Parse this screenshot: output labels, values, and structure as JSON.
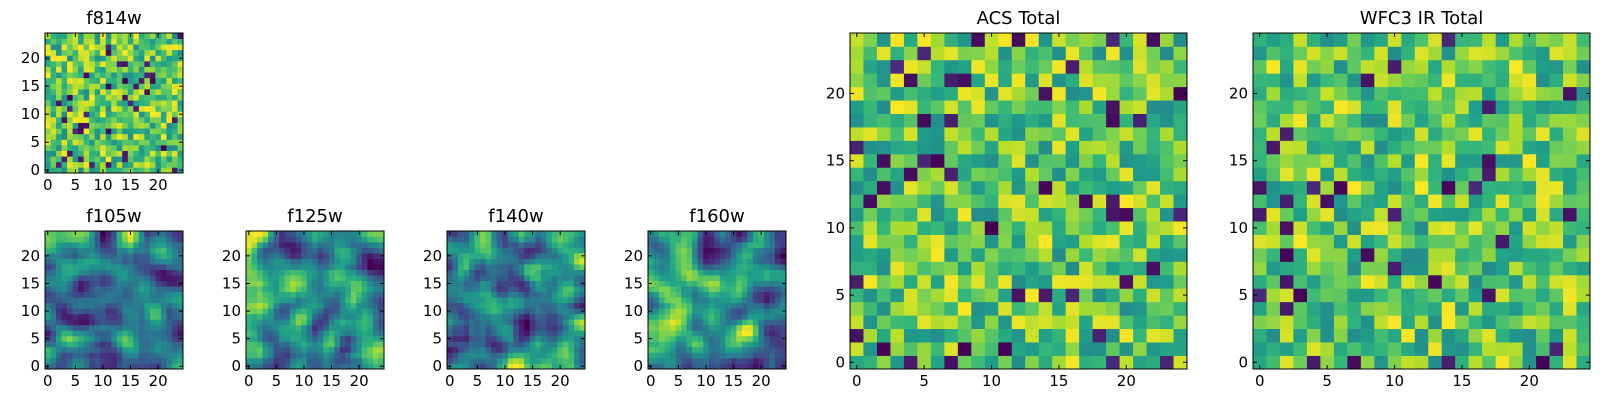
{
  "figure": {
    "colormap": "viridis",
    "colors": [
      "#440154",
      "#31688e",
      "#21918c",
      "#35b779",
      "#90d743",
      "#fde725"
    ]
  },
  "chart_data": [
    {
      "id": "f814w",
      "type": "heatmap",
      "title": "f814w",
      "grid": [
        25,
        25
      ],
      "xlim": [
        0,
        24
      ],
      "ylim": [
        0,
        24
      ],
      "xticks": [
        0,
        5,
        10,
        15,
        20
      ],
      "yticks": [
        0,
        5,
        10,
        15,
        20
      ],
      "texture": "noise",
      "seed": 11
    },
    {
      "id": "f105w",
      "type": "heatmap",
      "title": "f105w",
      "grid": [
        25,
        25
      ],
      "xlim": [
        0,
        24
      ],
      "ylim": [
        0,
        24
      ],
      "xticks": [
        0,
        5,
        10,
        15,
        20
      ],
      "yticks": [
        0,
        5,
        10,
        15,
        20
      ],
      "texture": "smooth",
      "seed": 23
    },
    {
      "id": "f125w",
      "type": "heatmap",
      "title": "f125w",
      "grid": [
        25,
        25
      ],
      "xlim": [
        0,
        24
      ],
      "ylim": [
        0,
        24
      ],
      "xticks": [
        0,
        5,
        10,
        15,
        20
      ],
      "yticks": [
        0,
        5,
        10,
        15,
        20
      ],
      "texture": "smooth",
      "seed": 37
    },
    {
      "id": "f140w",
      "type": "heatmap",
      "title": "f140w",
      "grid": [
        25,
        25
      ],
      "xlim": [
        0,
        24
      ],
      "ylim": [
        0,
        24
      ],
      "xticks": [
        0,
        5,
        10,
        15,
        20
      ],
      "yticks": [
        0,
        5,
        10,
        15,
        20
      ],
      "texture": "smooth",
      "seed": 41
    },
    {
      "id": "f160w",
      "type": "heatmap",
      "title": "f160w",
      "grid": [
        25,
        25
      ],
      "xlim": [
        0,
        24
      ],
      "ylim": [
        0,
        24
      ],
      "xticks": [
        0,
        5,
        10,
        15,
        20
      ],
      "yticks": [
        0,
        5,
        10,
        15,
        20
      ],
      "texture": "smooth",
      "seed": 53
    },
    {
      "id": "acs-total",
      "type": "heatmap",
      "title": "ACS Total",
      "grid": [
        25,
        25
      ],
      "xlim": [
        0,
        24
      ],
      "ylim": [
        0,
        24
      ],
      "xticks": [
        0,
        5,
        10,
        15,
        20
      ],
      "yticks": [
        0,
        5,
        10,
        15,
        20
      ],
      "texture": "noise",
      "seed": 67
    },
    {
      "id": "wfc3-ir-total",
      "type": "heatmap",
      "title": "WFC3 IR Total",
      "grid": [
        25,
        25
      ],
      "xlim": [
        0,
        24
      ],
      "ylim": [
        0,
        24
      ],
      "xticks": [
        0,
        5,
        10,
        15,
        20
      ],
      "yticks": [
        0,
        5,
        10,
        15,
        20
      ],
      "texture": "noise",
      "seed": 79
    }
  ]
}
